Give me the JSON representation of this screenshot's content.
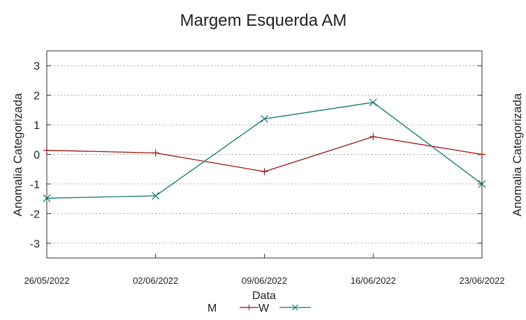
{
  "chart_data": {
    "type": "line",
    "title": "Margem Esquerda AM",
    "xlabel": "Data",
    "ylabel": "Anomalia Categorizada",
    "y2label": "Anomalia Categorizada",
    "categories": [
      "26/05/2022",
      "02/06/2022",
      "09/06/2022",
      "16/06/2022",
      "23/06/2022"
    ],
    "ylim": [
      -3.5,
      3.5
    ],
    "yticks": [
      3,
      2,
      1,
      0,
      -1,
      -2,
      -3
    ],
    "grid": true,
    "legend_position": "bottom",
    "series": [
      {
        "name": "M",
        "color": "#a01010",
        "marker": "plus",
        "values": [
          0.14,
          0.05,
          -0.58,
          0.6,
          0.0
        ]
      },
      {
        "name": "W",
        "color": "#0e7373",
        "marker": "cross",
        "values": [
          -1.48,
          -1.4,
          1.2,
          1.76,
          -1.0
        ]
      }
    ]
  }
}
